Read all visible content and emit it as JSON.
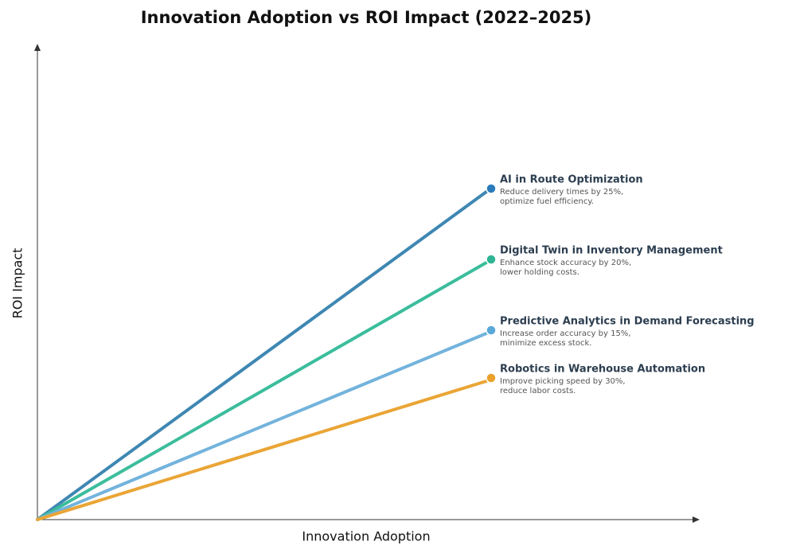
{
  "title": "Innovation Adoption vs ROI Impact (2022–2025)",
  "x_axis_label": "Innovation Adoption",
  "y_axis_label": "ROI Impact",
  "items": [
    {
      "label": "AI in Route Optimization",
      "description": [
        "Reduce delivery times by 25%,",
        "optimize fuel efficiency."
      ],
      "color": "#3f87b3",
      "dot_color": "#2b7bba"
    },
    {
      "label": "Digital Twin in Inventory Management",
      "description": [
        "Enhance stock accuracy by 20%,",
        "lower holding costs."
      ],
      "color": "#3bbd9c",
      "dot_color": "#2fb593"
    },
    {
      "label": "Predictive Analytics in Demand Forecasting",
      "description": [
        "Increase order accuracy by 15%,",
        "minimize excess stock."
      ],
      "color": "#72b3dc",
      "dot_color": "#5aa8da"
    },
    {
      "label": "Robotics in Warehouse Automation",
      "description": [
        "Improve picking speed by 30%,",
        "reduce labor costs."
      ],
      "color": "#eaa536",
      "dot_color": "#eaa12a"
    }
  ]
}
